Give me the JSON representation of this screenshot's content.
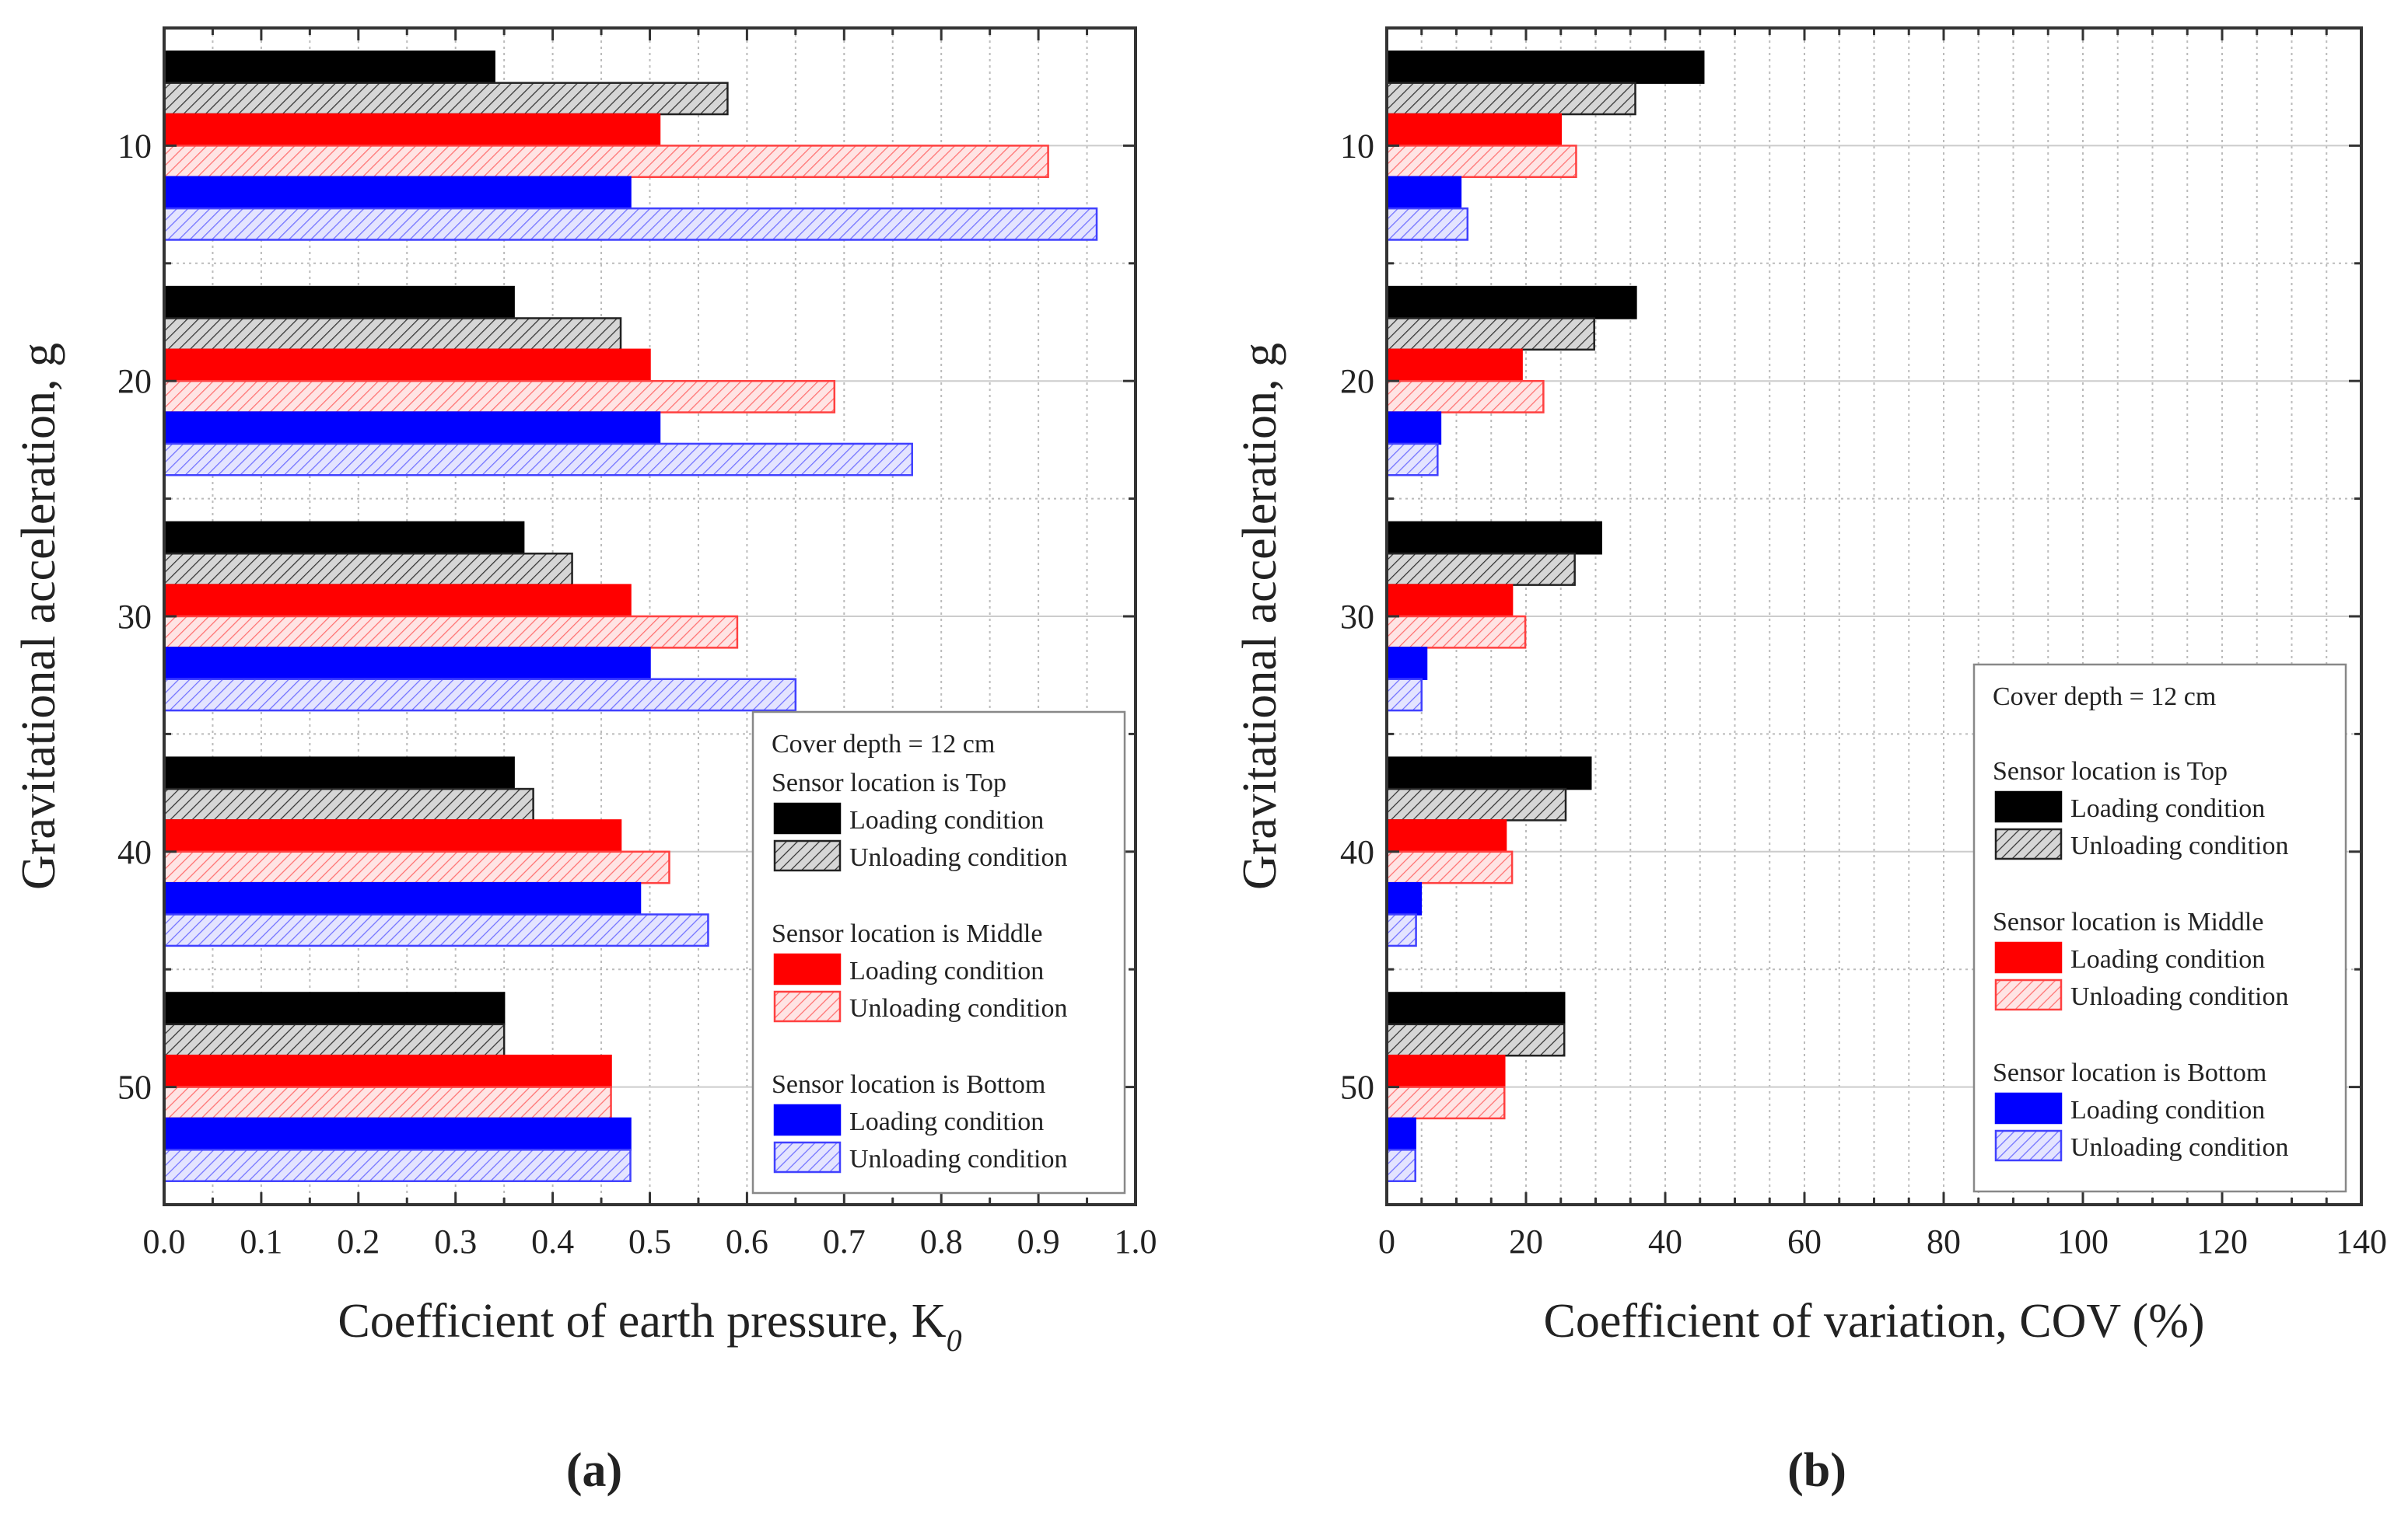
{
  "legend_common": {
    "cover_depth": "Cover depth = 12 cm",
    "groups": [
      {
        "title": "Sensor location is Top",
        "loading": "Loading condition",
        "unloading": "Unloading condition"
      },
      {
        "title": "Sensor location is Middle",
        "loading": "Loading condition",
        "unloading": "Unloading condition"
      },
      {
        "title": "Sensor location is Bottom",
        "loading": "Loading condition",
        "unloading": "Unloading condition"
      }
    ]
  },
  "colors": {
    "top_loading": "#000000",
    "top_unloading": "#c8c8c8",
    "middle_loading": "#ff0000",
    "middle_unloading": "#ffd0d0",
    "bottom_loading": "#0000ff",
    "bottom_unloading": "#d0d0ff"
  },
  "chart_data": [
    {
      "type": "bar",
      "orientation": "horizontal",
      "panel_label": "(a)",
      "xlabel": "Coefficient of earth pressure, K",
      "xlabel_sub": "0",
      "ylabel": "Gravitational acceleration, g",
      "xlim": [
        0,
        1.0
      ],
      "xticks": [
        "0.0",
        "0.1",
        "0.2",
        "0.3",
        "0.4",
        "0.5",
        "0.6",
        "0.7",
        "0.8",
        "0.9",
        "1.0"
      ],
      "ylim": [
        5,
        55
      ],
      "categories": [
        "10",
        "20",
        "30",
        "40",
        "50"
      ],
      "legend_placement": "bottom-right",
      "series": [
        {
          "name": "Top - Loading condition",
          "values": [
            0.34,
            0.36,
            0.37,
            0.36,
            0.35
          ]
        },
        {
          "name": "Top - Unloading condition",
          "values": [
            0.58,
            0.47,
            0.42,
            0.38,
            0.35
          ]
        },
        {
          "name": "Middle - Loading condition",
          "values": [
            0.51,
            0.5,
            0.48,
            0.47,
            0.46
          ]
        },
        {
          "name": "Middle - Unloading condition",
          "values": [
            0.91,
            0.69,
            0.59,
            0.52,
            0.46
          ]
        },
        {
          "name": "Bottom - Loading condition",
          "values": [
            0.48,
            0.51,
            0.5,
            0.49,
            0.48
          ]
        },
        {
          "name": "Bottom - Unloading condition",
          "values": [
            0.96,
            0.77,
            0.65,
            0.56,
            0.48
          ]
        }
      ]
    },
    {
      "type": "bar",
      "orientation": "horizontal",
      "panel_label": "(b)",
      "xlabel": "Coefficient of variation, COV (%)",
      "xlabel_sub": "",
      "ylabel": "Gravitational acceleration, g",
      "xlim": [
        0,
        140
      ],
      "xticks": [
        "0",
        "20",
        "40",
        "60",
        "80",
        "100",
        "120",
        "140"
      ],
      "ylim": [
        5,
        55
      ],
      "categories": [
        "10",
        "20",
        "30",
        "40",
        "50"
      ],
      "legend_placement": "bottom-right",
      "series": [
        {
          "name": "Top - Loading condition",
          "values": [
            45.5,
            35.8,
            30.8,
            29.3,
            25.5
          ]
        },
        {
          "name": "Top - Unloading condition",
          "values": [
            35.7,
            29.8,
            27.0,
            25.7,
            25.5
          ]
        },
        {
          "name": "Middle - Loading condition",
          "values": [
            25.0,
            19.4,
            18.0,
            17.1,
            16.9
          ]
        },
        {
          "name": "Middle - Unloading condition",
          "values": [
            27.2,
            22.5,
            19.9,
            18.0,
            16.9
          ]
        },
        {
          "name": "Bottom - Loading condition",
          "values": [
            10.6,
            7.7,
            5.7,
            4.9,
            4.1
          ]
        },
        {
          "name": "Bottom - Unloading condition",
          "values": [
            11.6,
            7.3,
            5.0,
            4.2,
            4.1
          ]
        }
      ]
    }
  ]
}
